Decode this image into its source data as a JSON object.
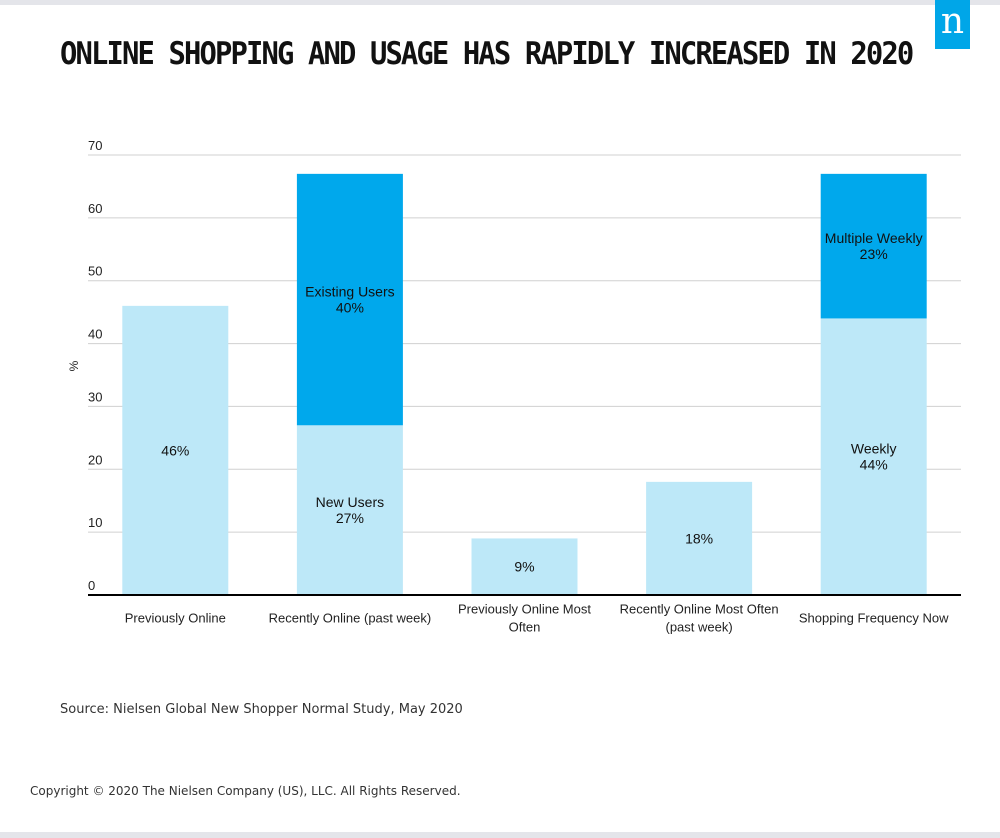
{
  "page": {
    "title": "ONLINE SHOPPING AND USAGE HAS RAPIDLY INCREASED IN 2020",
    "logo_text": "n",
    "source": "Source: Nielsen Global New Shopper Normal Study, May 2020",
    "copyright": "Copyright © 2020 The Nielsen Company (US), LLC. All Rights Reserved."
  },
  "colors": {
    "light": "#bde8f8",
    "dark": "#00a8ec",
    "grid": "#d0d0d0",
    "axis": "#000000",
    "brand": "#00a6e8"
  },
  "chart_data": {
    "type": "bar",
    "stacked": true,
    "ylabel": "%",
    "ylim": [
      0,
      70
    ],
    "yticks": [
      0,
      10,
      20,
      30,
      40,
      50,
      60,
      70
    ],
    "grid": true,
    "categories": [
      [
        "Previously Online"
      ],
      [
        "Recently Online (past week)"
      ],
      [
        "Previously Online Most",
        "Often"
      ],
      [
        "Recently Online Most Often",
        "(past week)"
      ],
      [
        "Shopping Frequency Now"
      ]
    ],
    "bars": [
      {
        "segments": [
          {
            "value": 46,
            "label": [
              "46%"
            ],
            "tone": "light"
          }
        ]
      },
      {
        "segments": [
          {
            "value": 27,
            "label": [
              "New Users",
              "27%"
            ],
            "tone": "light"
          },
          {
            "value": 40,
            "label": [
              "Existing Users",
              "40%"
            ],
            "tone": "dark"
          }
        ]
      },
      {
        "segments": [
          {
            "value": 9,
            "label": [
              "9%"
            ],
            "tone": "light"
          }
        ]
      },
      {
        "segments": [
          {
            "value": 18,
            "label": [
              "18%"
            ],
            "tone": "light"
          }
        ]
      },
      {
        "segments": [
          {
            "value": 44,
            "label": [
              "Weekly",
              "44%"
            ],
            "tone": "light"
          },
          {
            "value": 23,
            "label": [
              "Multiple Weekly",
              "23%"
            ],
            "tone": "dark"
          }
        ]
      }
    ]
  }
}
